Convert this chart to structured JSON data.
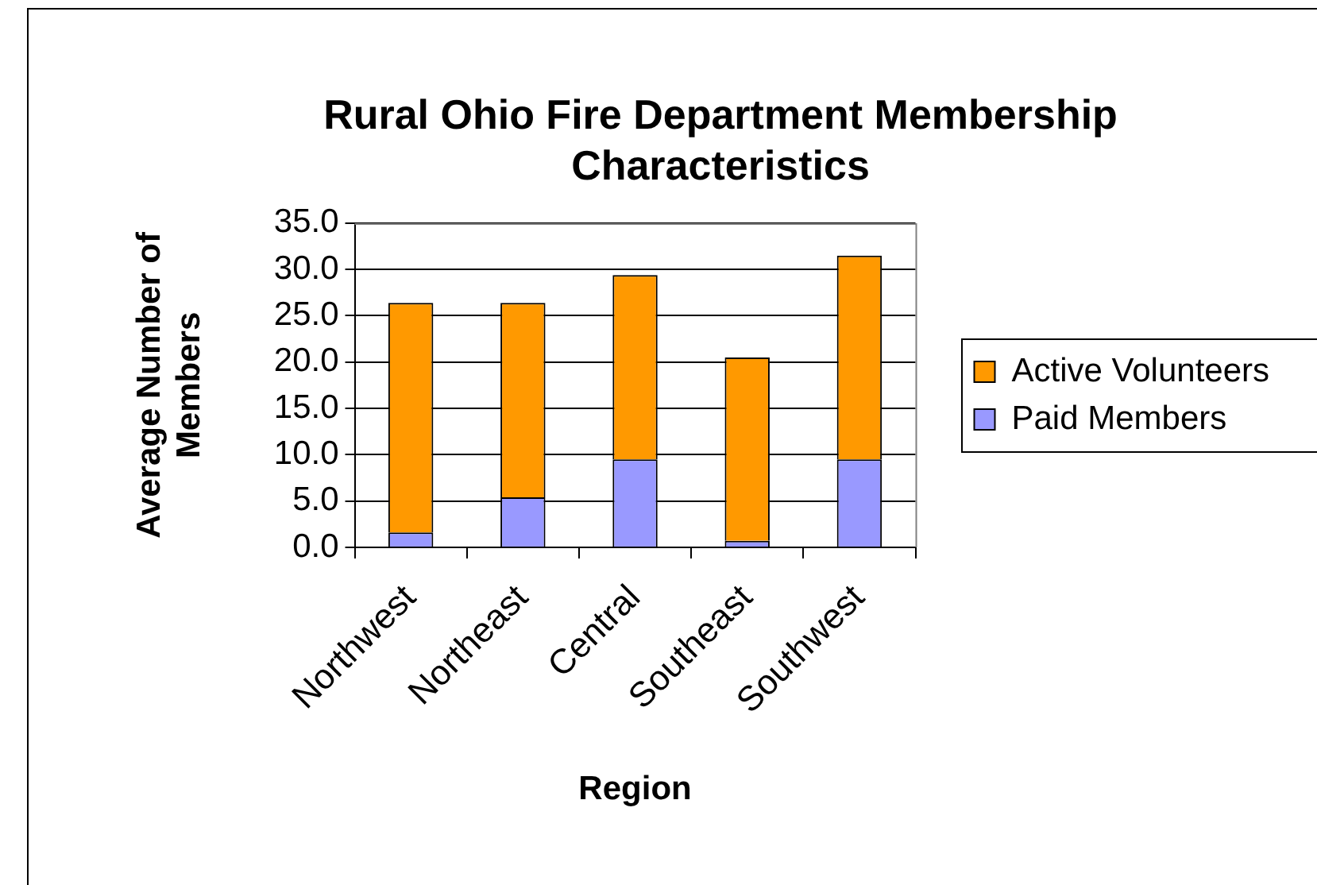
{
  "chart_data": {
    "type": "bar",
    "title": "Rural Ohio Fire Department Membership Characteristics",
    "xlabel": "Region",
    "ylabel": "Average Number of Members",
    "categories": [
      "Northwest",
      "Northeast",
      "Central",
      "Southeast",
      "Southwest"
    ],
    "series": [
      {
        "name": "Paid Members",
        "color": "#9999ff",
        "values": [
          1.6,
          5.4,
          9.5,
          0.7,
          9.5
        ]
      },
      {
        "name": "Active Volunteers",
        "color": "#ff9900",
        "values": [
          24.8,
          21.0,
          19.9,
          19.8,
          22.0
        ]
      }
    ],
    "stacked": true,
    "ylim": [
      0,
      35
    ],
    "yticks": [
      {
        "value": 0,
        "label": "0.0"
      },
      {
        "value": 5,
        "label": "5.0"
      },
      {
        "value": 10,
        "label": "10.0"
      },
      {
        "value": 15,
        "label": "15.0"
      },
      {
        "value": 20,
        "label": "20.0"
      },
      {
        "value": 25,
        "label": "25.0"
      },
      {
        "value": 30,
        "label": "30.0"
      },
      {
        "value": 35,
        "label": "35.0"
      }
    ],
    "grid": "y",
    "legend": "right"
  }
}
